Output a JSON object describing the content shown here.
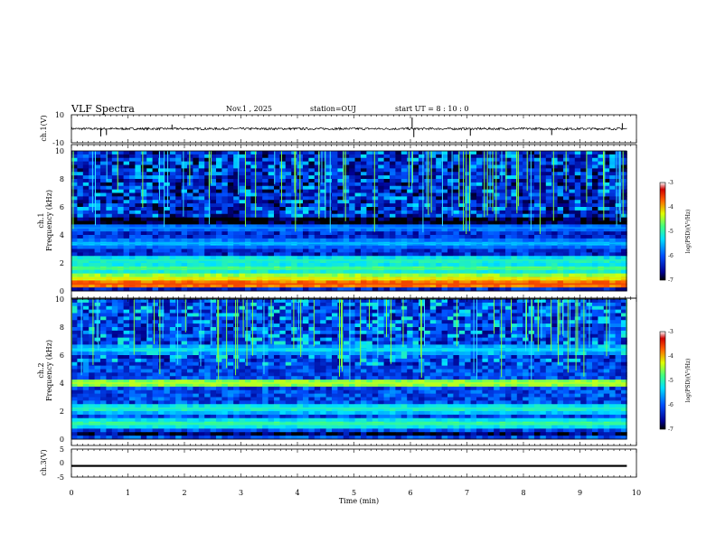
{
  "header": {
    "title": "VLF Spectra",
    "date": "Nov.1 , 2025",
    "station": "station=OUJ",
    "start_ut": "start UT = 8 : 10 : 0"
  },
  "chart_data": [
    {
      "id": "ch1-waveform",
      "type": "line",
      "ylabel": "ch.1(V)",
      "ylim": [
        -10,
        10
      ],
      "yticks": [
        "10",
        "-10"
      ],
      "mean": 0,
      "noise_amp": 0.8,
      "spikes": [
        {
          "t": 0.52,
          "v": -5.5
        },
        {
          "t": 0.62,
          "v": -4.5
        },
        {
          "t": 1.78,
          "v": 3.0
        },
        {
          "t": 6.03,
          "v": 8.0
        },
        {
          "t": 6.06,
          "v": -6.0
        },
        {
          "t": 7.06,
          "v": -5.0
        },
        {
          "t": 8.5,
          "v": -4.5
        },
        {
          "t": 9.75,
          "v": 4.0
        }
      ]
    },
    {
      "id": "ch1-spectrogram",
      "type": "heatmap",
      "ylabel": "ch.1\nFrequency (kHz)",
      "ylabel_lines": [
        "ch.1",
        "Frequency (kHz)"
      ],
      "ylim": [
        0,
        10
      ],
      "yticks": [
        "0",
        "2",
        "4",
        "6",
        "8",
        "10"
      ],
      "colorbar": {
        "label": "log(PSD)(V²/Hz)",
        "range": [
          -7,
          -3
        ],
        "ticks": [
          "-3",
          "-4",
          "-5",
          "-6",
          "-7"
        ]
      },
      "bands_khz": [
        {
          "f": 0.5,
          "level": -3.6
        },
        {
          "f": 0.9,
          "level": -4.2
        },
        {
          "f": 1.6,
          "level": -4.8
        },
        {
          "f": 2.2,
          "level": -5.0
        },
        {
          "f": 3.4,
          "level": -5.5
        },
        {
          "f": 4.5,
          "level": -5.7
        }
      ],
      "dark_band_khz": [
        4.8,
        5.2
      ],
      "background_level": -6.3
    },
    {
      "id": "ch2-spectrogram",
      "type": "heatmap",
      "ylabel": "ch.2\nFrequency (kHz)",
      "ylabel_lines": [
        "ch.2",
        "Frequency (kHz)"
      ],
      "ylim": [
        0,
        10
      ],
      "yticks": [
        "0",
        "2",
        "4",
        "6",
        "8",
        "10"
      ],
      "colorbar": {
        "label": "log(PSD)(V²/Hz)",
        "range": [
          -7,
          -3
        ],
        "ticks": [
          "-3",
          "-4",
          "-5",
          "-6",
          "-7"
        ]
      },
      "bands_khz": [
        {
          "f": 1.1,
          "level": -4.9
        },
        {
          "f": 2.2,
          "level": -5.0
        },
        {
          "f": 4.0,
          "level": -4.4
        },
        {
          "f": 6.4,
          "level": -5.3
        }
      ],
      "dark_band_khz": [
        0.3,
        0.6
      ],
      "background_level": -6.1
    },
    {
      "id": "ch3-waveform",
      "type": "line",
      "ylabel": "ch.3(V)",
      "ylim": [
        -5,
        5
      ],
      "yticks": [
        "5",
        "0",
        "-5"
      ],
      "mean": -1.0,
      "noise_amp": 0.35,
      "spikes": []
    }
  ],
  "xaxis": {
    "label": "Time (min)",
    "range": [
      0,
      10
    ],
    "data_end": 9.83,
    "ticks": [
      "0",
      "1",
      "2",
      "3",
      "4",
      "5",
      "6",
      "7",
      "8",
      "9",
      "10"
    ]
  },
  "colors": {
    "line": "#000000",
    "background": "#ffffff"
  }
}
